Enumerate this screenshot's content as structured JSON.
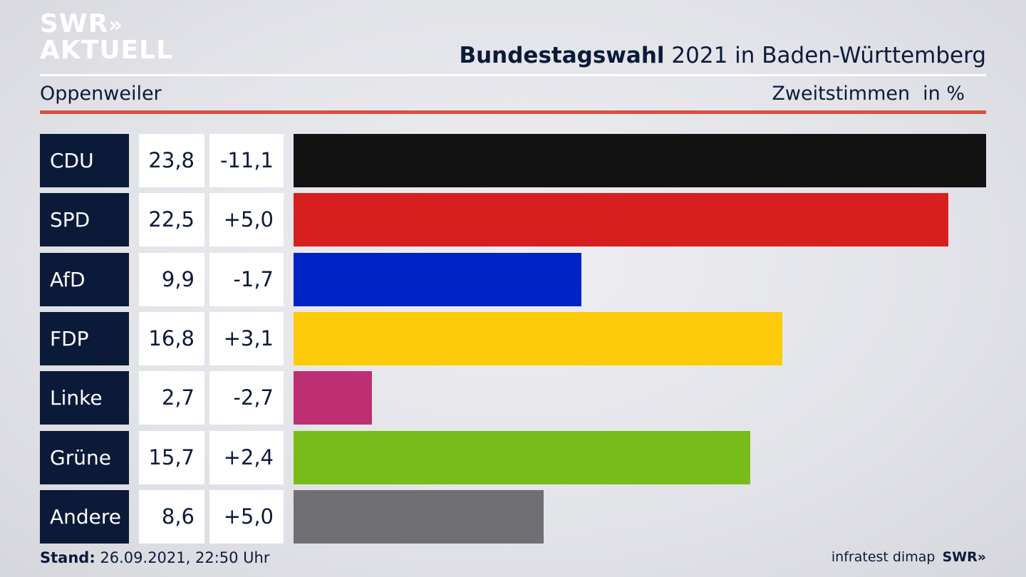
{
  "brand": {
    "line1": "SWR",
    "chevrons": "»",
    "line2": "AKTUELL"
  },
  "header": {
    "title_strong": "Bundestagswahl",
    "title_rest": " 2021 in Baden-Württemberg",
    "location": "Oppenweiler",
    "vote_type": "Zweitstimmen",
    "unit": "in %"
  },
  "chart_data": {
    "type": "bar",
    "orientation": "horizontal",
    "categories": [
      "CDU",
      "SPD",
      "AfD",
      "FDP",
      "Linke",
      "Grüne",
      "Andere"
    ],
    "values": [
      23.8,
      22.5,
      9.9,
      16.8,
      2.7,
      15.7,
      8.6
    ],
    "value_labels": [
      "23,8",
      "22,5",
      "9,9",
      "16,8",
      "2,7",
      "15,7",
      "8,6"
    ],
    "diff_labels": [
      "-11,1",
      "+5,0",
      "-1,7",
      "+3,1",
      "-2,7",
      "+2,4",
      "+5,0"
    ],
    "colors": [
      "#121212",
      "#d81f20",
      "#0023c8",
      "#fecb0a",
      "#bd2e72",
      "#78bc1b",
      "#707073"
    ],
    "xlim": [
      0,
      23.8
    ],
    "grid": false,
    "legend": "none"
  },
  "footer": {
    "stand_label": "Stand:",
    "stand_value": " 26.09.2021, 22:50 Uhr",
    "source": "infratest dimap",
    "source_brand": "SWR»"
  }
}
